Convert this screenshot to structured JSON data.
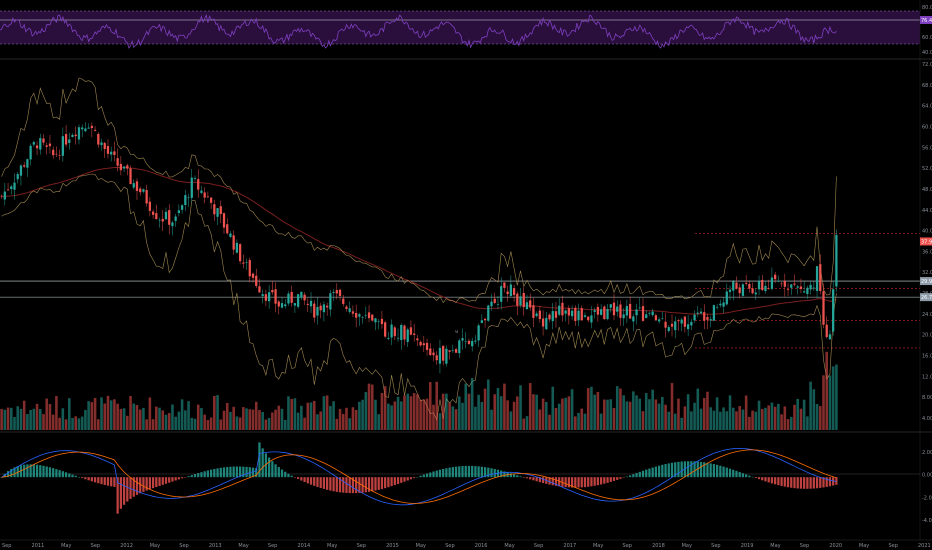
{
  "colors": {
    "background": "#000000",
    "up": "#26a69a",
    "down": "#ef5350",
    "rsi_line": "#7e3fbf",
    "rsi_band": "#2a0f3d",
    "price_badge": "#ef5350",
    "level_badge": "#8e9ba8",
    "bollinger": "#a08850",
    "ma_long": "#7a1f1f",
    "macd": "#2962ff",
    "signal": "#ff6d00"
  },
  "chart_data": [
    {
      "type": "line",
      "name": "rsi-pane",
      "y_tick_labels": [
        "80.00",
        "76.41",
        "60.00",
        "40.00"
      ],
      "badge": "76.41",
      "levels": [
        70,
        30
      ],
      "ylim": [
        20,
        85
      ]
    },
    {
      "type": "candlestick",
      "name": "price-pane",
      "y_tick_labels": [
        "72.00",
        "68.00",
        "64.00",
        "60.00",
        "56.00",
        "52.00",
        "48.00",
        "44.00",
        "40.00",
        "36.00",
        "32.00",
        "28.00",
        "24.00",
        "20.00",
        "16.00",
        "12.00",
        "8.00",
        "4.00"
      ],
      "badges": [
        "37.91",
        "29.95",
        "26.72"
      ],
      "ylim": [
        0,
        74
      ],
      "x_tick_labels": [
        "Sep",
        "2011",
        "May",
        "Sep",
        "2012",
        "May",
        "Sep",
        "2013",
        "May",
        "Sep",
        "2014",
        "May",
        "Sep",
        "2015",
        "May",
        "Sep",
        "2016",
        "May",
        "Sep",
        "2017",
        "May",
        "Sep",
        "2018",
        "May",
        "Sep",
        "2019",
        "May",
        "Sep",
        "2020",
        "May",
        "Sep",
        "2021"
      ],
      "close_path": [
        [
          0,
          47
        ],
        [
          3,
          52
        ],
        [
          6,
          58
        ],
        [
          9,
          55
        ],
        [
          12,
          60
        ],
        [
          15,
          62
        ],
        [
          18,
          56
        ],
        [
          21,
          52
        ],
        [
          24,
          48
        ],
        [
          27,
          43
        ],
        [
          30,
          42
        ],
        [
          33,
          50
        ],
        [
          36,
          46
        ],
        [
          39,
          40
        ],
        [
          42,
          33
        ],
        [
          45,
          28
        ],
        [
          48,
          25
        ],
        [
          51,
          27
        ],
        [
          54,
          24
        ],
        [
          57,
          27
        ],
        [
          60,
          25
        ],
        [
          63,
          22
        ],
        [
          66,
          20
        ],
        [
          69,
          20
        ],
        [
          72,
          17
        ],
        [
          75,
          15
        ],
        [
          78,
          16
        ],
        [
          81,
          18
        ],
        [
          84,
          24
        ],
        [
          87,
          29
        ],
        [
          90,
          25
        ],
        [
          93,
          22
        ],
        [
          96,
          24
        ],
        [
          99,
          23
        ],
        [
          102,
          23
        ],
        [
          105,
          24
        ],
        [
          108,
          24
        ],
        [
          111,
          23
        ],
        [
          114,
          22
        ],
        [
          117,
          21
        ],
        [
          120,
          23
        ],
        [
          123,
          24
        ],
        [
          126,
          29
        ],
        [
          129,
          28
        ],
        [
          132,
          29
        ],
        [
          135,
          30
        ],
        [
          138,
          28
        ],
        [
          140,
          29
        ],
        [
          141,
          33
        ],
        [
          142,
          16
        ],
        [
          143,
          20
        ],
        [
          144,
          38
        ]
      ],
      "volume_note": "volume histogram at bottom of pane"
    },
    {
      "type": "bar",
      "name": "macd-pane",
      "y_tick_labels": [
        "2.00",
        "0.00",
        "-2.00",
        "-4.00"
      ],
      "ylim": [
        -5,
        3.5
      ]
    }
  ]
}
